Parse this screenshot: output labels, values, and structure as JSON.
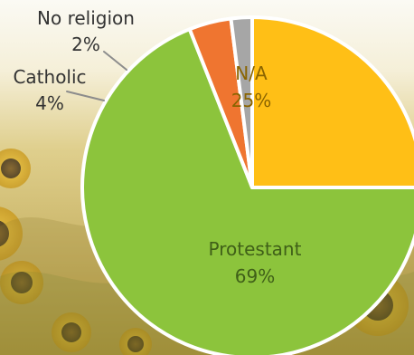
{
  "chart_data": {
    "type": "pie",
    "title": "",
    "slices": [
      {
        "label": "N/A",
        "value": 25,
        "value_label": "25%",
        "color": "#ffbf16"
      },
      {
        "label": "Protestant",
        "value": 69,
        "value_label": "69%",
        "color": "#8cc43c"
      },
      {
        "label": "Catholic",
        "value": 4,
        "value_label": "4%",
        "color": "#ef7530"
      },
      {
        "label": "No religion",
        "value": 2,
        "value_label": "2%",
        "color": "#a6a6a6"
      }
    ],
    "start_angle_deg": 0,
    "direction": "clockwise",
    "label_placement": {
      "N/A": "inside",
      "Protestant": "inside",
      "Catholic": "outside-left",
      "No religion": "outside-top-left"
    },
    "legend": "none",
    "background": "sunflower-field photo",
    "colors": {
      "slice_border": "#ffffff",
      "inside_label_text_on_yellow": "#8a6400",
      "inside_label_text_on_green": "#3f5f18",
      "callout_text": "#333333",
      "leader_line": "#8c8c8c"
    }
  }
}
